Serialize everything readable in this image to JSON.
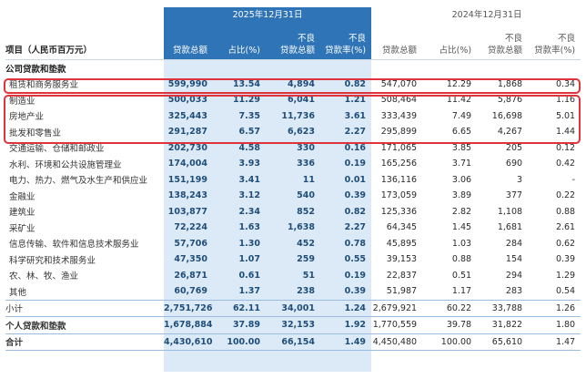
{
  "header": {
    "current_period": "2025年12月31日",
    "previous_period": "2024年12月31日",
    "item_label": "项目（人民币百万元）",
    "cols": {
      "total": "贷款总额",
      "share": "占比(%)",
      "npl_top": "不良",
      "npl_bottom": "贷款总额",
      "ratio_top": "不良",
      "ratio_bottom": "贷款率(%)"
    },
    "prev_cols": {
      "total": "贷款总额",
      "share": "占比(%)",
      "npl_top": "不良",
      "npl_bottom": "贷款总额",
      "ratio_top": "不良",
      "ratio_bottom": "贷款率(%)"
    }
  },
  "section_label": "公司贷款和垫款",
  "rows": [
    {
      "label": "租赁和商务服务业",
      "c": [
        "599,990",
        "13.54",
        "4,894",
        "0.82"
      ],
      "p": [
        "547,070",
        "12.29",
        "1,868",
        "0.34"
      ]
    },
    {
      "label": "制造业",
      "c": [
        "500,033",
        "11.29",
        "6,041",
        "1.21"
      ],
      "p": [
        "508,464",
        "11.42",
        "5,876",
        "1.16"
      ]
    },
    {
      "label": "房地产业",
      "c": [
        "325,443",
        "7.35",
        "11,736",
        "3.61"
      ],
      "p": [
        "333,439",
        "7.49",
        "16,698",
        "5.01"
      ]
    },
    {
      "label": "批发和零售业",
      "c": [
        "291,287",
        "6.57",
        "6,623",
        "2.27"
      ],
      "p": [
        "295,899",
        "6.65",
        "4,267",
        "1.44"
      ]
    },
    {
      "label": "交通运输、仓储和邮政业",
      "c": [
        "202,730",
        "4.58",
        "330",
        "0.16"
      ],
      "p": [
        "171,065",
        "3.85",
        "205",
        "0.12"
      ]
    },
    {
      "label": "水利、环境和公共设施管理业",
      "c": [
        "174,004",
        "3.93",
        "336",
        "0.19"
      ],
      "p": [
        "165,256",
        "3.71",
        "690",
        "0.42"
      ]
    },
    {
      "label": "电力、热力、燃气及水生产和供应业",
      "c": [
        "151,199",
        "3.41",
        "11",
        "0.01"
      ],
      "p": [
        "136,116",
        "3.06",
        "3",
        "-"
      ]
    },
    {
      "label": "金融业",
      "c": [
        "138,243",
        "3.12",
        "540",
        "0.39"
      ],
      "p": [
        "173,059",
        "3.89",
        "377",
        "0.22"
      ]
    },
    {
      "label": "建筑业",
      "c": [
        "103,877",
        "2.34",
        "852",
        "0.82"
      ],
      "p": [
        "125,336",
        "2.82",
        "1,108",
        "0.88"
      ]
    },
    {
      "label": "采矿业",
      "c": [
        "72,224",
        "1.63",
        "1,638",
        "2.27"
      ],
      "p": [
        "64,345",
        "1.45",
        "1,681",
        "2.61"
      ]
    },
    {
      "label": "信息传输、软件和信息技术服务业",
      "c": [
        "57,706",
        "1.30",
        "452",
        "0.78"
      ],
      "p": [
        "45,895",
        "1.03",
        "284",
        "0.62"
      ]
    },
    {
      "label": "科学研究和技术服务业",
      "c": [
        "47,350",
        "1.07",
        "259",
        "0.55"
      ],
      "p": [
        "39,153",
        "0.88",
        "154",
        "0.39"
      ]
    },
    {
      "label": "农、林、牧、渔业",
      "c": [
        "26,871",
        "0.61",
        "51",
        "0.19"
      ],
      "p": [
        "22,837",
        "0.51",
        "294",
        "1.29"
      ]
    },
    {
      "label": "其他",
      "c": [
        "60,769",
        "1.37",
        "238",
        "0.39"
      ],
      "p": [
        "51,987",
        "1.17",
        "283",
        "0.54"
      ]
    }
  ],
  "subtotal": {
    "label": "小计",
    "c": [
      "2,751,726",
      "62.11",
      "34,001",
      "1.24"
    ],
    "p": [
      "2,679,921",
      "60.22",
      "33,788",
      "1.26"
    ]
  },
  "personal": {
    "label": "个人贷款和垫款",
    "c": [
      "1,678,884",
      "37.89",
      "32,153",
      "1.92"
    ],
    "p": [
      "1,770,559",
      "39.78",
      "31,822",
      "1.80"
    ]
  },
  "total": {
    "label": "合计",
    "c": [
      "4,430,610",
      "100.00",
      "66,154",
      "1.49"
    ],
    "p": [
      "4,450,480",
      "100.00",
      "65,610",
      "1.47"
    ]
  },
  "colors": {
    "band": "#dce9f6",
    "header": "#2e74b6",
    "highlight": "#e0343c",
    "value": "#1f4e79"
  }
}
